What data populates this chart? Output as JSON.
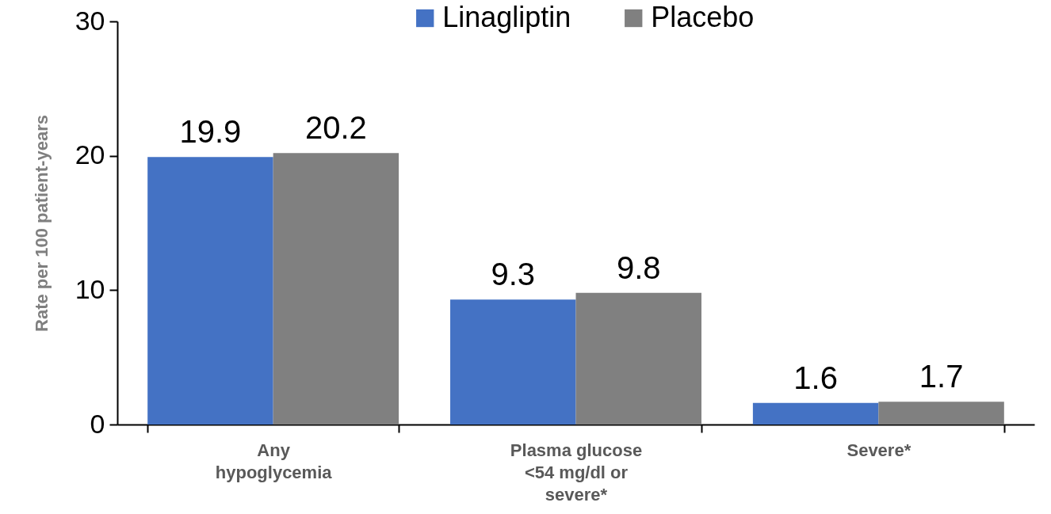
{
  "chart_data": {
    "type": "bar",
    "ylabel": "Rate per 100 patient-years",
    "categories": [
      "Any hypoglycemia",
      "Plasma glucose <54 mg/dl or severe*",
      "Severe*"
    ],
    "series": [
      {
        "name": "Linagliptin",
        "color": "#4472c4",
        "values": [
          19.9,
          9.3,
          1.6
        ]
      },
      {
        "name": "Placebo",
        "color": "#808080",
        "values": [
          20.2,
          9.8,
          1.7
        ]
      }
    ],
    "ylim": [
      0,
      30
    ],
    "yticks": [
      0,
      10,
      20,
      30
    ],
    "grid": false,
    "legend": "top",
    "data_labels": true
  }
}
